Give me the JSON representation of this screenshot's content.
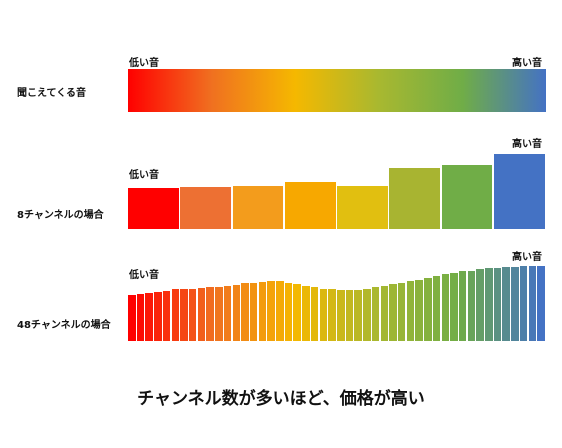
{
  "rows": {
    "heard": {
      "label": "聞こえてくる音"
    },
    "ch8": {
      "label": "8チャンネルの場合"
    },
    "ch48": {
      "label": "48チャンネルの場合"
    }
  },
  "marks": {
    "low": "低い音",
    "high": "高い音"
  },
  "caption": "チャンネル数が多いほど、価格が高い",
  "colors": {
    "gradient": [
      "#ff0000",
      "#f07020",
      "#f5b800",
      "#a8b830",
      "#70ad47",
      "#4472c4"
    ],
    "ch8": [
      "#ff0000",
      "#ed7033",
      "#f39c1c",
      "#f7a800",
      "#e1bf10",
      "#a8b431",
      "#70ad47",
      "#4472c4"
    ]
  },
  "chart_data": [
    {
      "type": "bar",
      "name": "8ch",
      "values": [
        0.55,
        0.56,
        0.58,
        0.63,
        0.58,
        0.82,
        0.86,
        1.0
      ]
    },
    {
      "type": "bar",
      "name": "48ch",
      "values": [
        0.62,
        0.63,
        0.64,
        0.66,
        0.67,
        0.69,
        0.7,
        0.7,
        0.71,
        0.72,
        0.72,
        0.74,
        0.75,
        0.77,
        0.78,
        0.79,
        0.8,
        0.8,
        0.78,
        0.76,
        0.74,
        0.72,
        0.7,
        0.69,
        0.68,
        0.68,
        0.68,
        0.7,
        0.72,
        0.74,
        0.76,
        0.78,
        0.8,
        0.82,
        0.84,
        0.87,
        0.89,
        0.91,
        0.93,
        0.94,
        0.96,
        0.97,
        0.98,
        0.99,
        0.99,
        1.0,
        1.0,
        1.0
      ]
    }
  ]
}
